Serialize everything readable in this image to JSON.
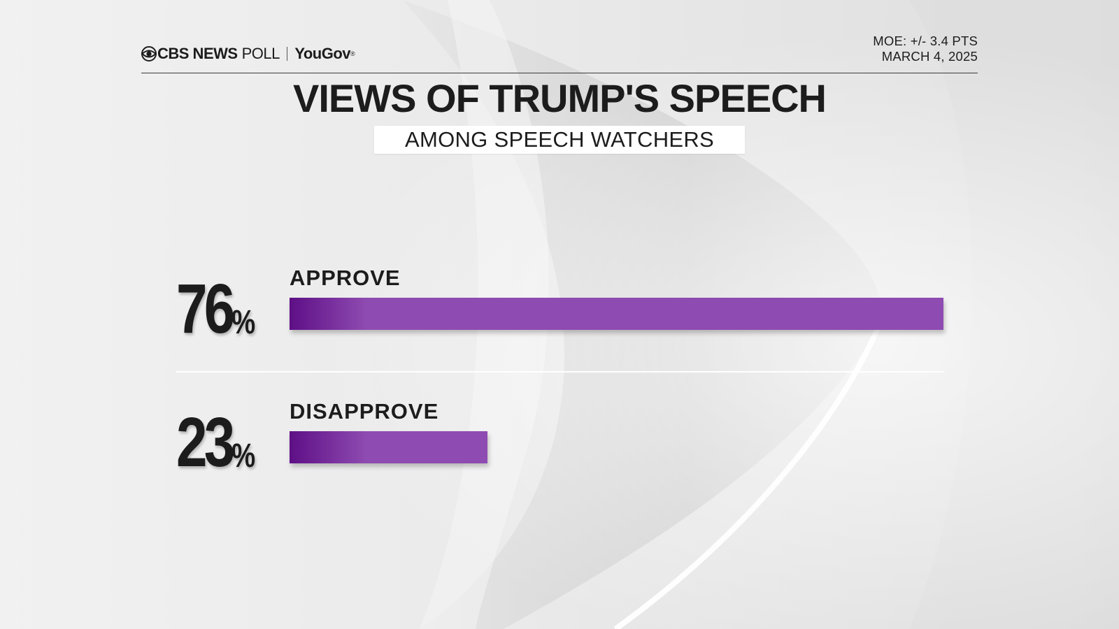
{
  "header": {
    "brand_cbs": "CBS NEWS",
    "brand_poll": "POLL",
    "brand_partner": "YouGov",
    "moe": "MOE: +/- 3.4 PTS",
    "date": "MARCH 4, 2025"
  },
  "chart_data": {
    "type": "bar",
    "orientation": "horizontal",
    "title": "VIEWS OF TRUMP'S SPEECH",
    "subtitle": "AMONG SPEECH WATCHERS",
    "categories": [
      "APPROVE",
      "DISAPPROVE"
    ],
    "values": [
      76,
      23
    ],
    "value_suffix": "%",
    "xlim": [
      0,
      76
    ],
    "grid": false,
    "legend": "none",
    "bar_color_start": "#5e0f86",
    "bar_color_end": "#8e4bb1"
  }
}
